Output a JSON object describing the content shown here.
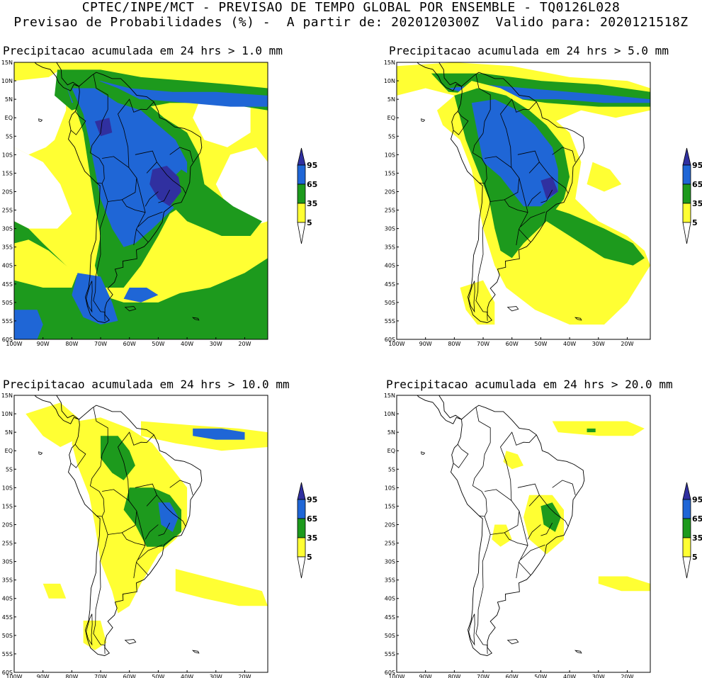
{
  "header": {
    "line1": "CPTEC/INPE/MCT - PREVISAO DE TEMPO GLOBAL POR ENSEMBLE - TQ0126L028",
    "line2": "Previsao de Probabilidades (%) -  A partir de: 2020120300Z  Valido para: 2020121518Z"
  },
  "colors": {
    "yellow": "#ffff33",
    "green": "#1d9a1d",
    "blue": "#1f66d6",
    "dark_blue": "#3030a0",
    "land_outline": "#000000"
  },
  "axis": {
    "lat_labels": [
      "15N",
      "10N",
      "5N",
      "EQ",
      "5S",
      "10S",
      "15S",
      "20S",
      "25S",
      "30S",
      "35S",
      "40S",
      "45S",
      "50S",
      "55S",
      "60S"
    ],
    "lon_labels": [
      "100W",
      "90W",
      "80W",
      "70W",
      "60W",
      "50W",
      "40W",
      "30W",
      "20W"
    ]
  },
  "legend": {
    "levels": [
      "95",
      "65",
      "35",
      "5"
    ]
  },
  "panels": [
    {
      "id": "p1",
      "title": "Precipitacao acumulada em 24 hrs > 1.0 mm"
    },
    {
      "id": "p2",
      "title": "Precipitacao acumulada em 24 hrs > 5.0 mm"
    },
    {
      "id": "p3",
      "title": "Precipitacao acumulada em 24 hrs > 10.0 mm"
    },
    {
      "id": "p4",
      "title": "Precipitacao acumulada em 24 hrs > 20.0 mm"
    }
  ]
}
